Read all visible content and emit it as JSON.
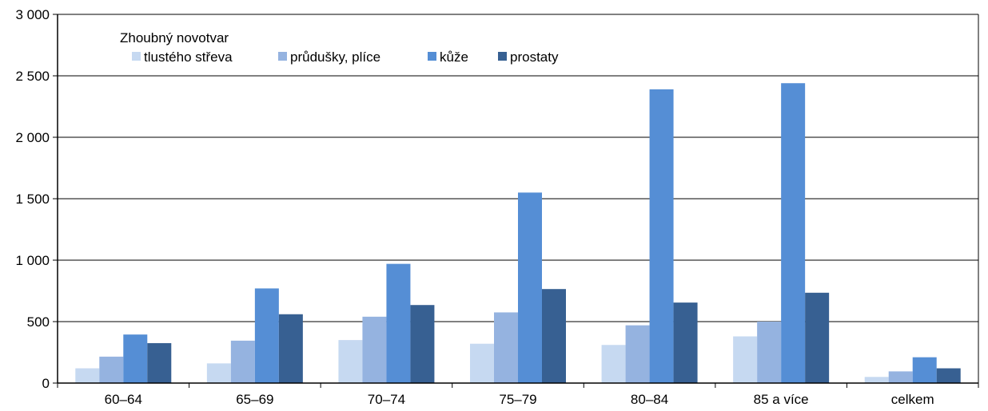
{
  "chart_data": {
    "type": "bar",
    "legend_title": "Zhoubný novotvar",
    "legend_position": "top-left",
    "grid": true,
    "ylim": [
      0,
      3000
    ],
    "yticks": [
      0,
      500,
      1000,
      1500,
      2000,
      2500,
      3000
    ],
    "ytick_labels": [
      "0",
      "500",
      "1 000",
      "1 500",
      "2 000",
      "2 500",
      "3 000"
    ],
    "categories": [
      "60–64",
      "65–69",
      "70–74",
      "75–79",
      "80–84",
      "85 a více",
      "celkem"
    ],
    "series": [
      {
        "name": "tlustého střeva",
        "color": "#c6d9f1",
        "values": [
          120,
          160,
          350,
          320,
          310,
          380,
          50
        ]
      },
      {
        "name": "průdušky, plíce",
        "color": "#95b3e0",
        "values": [
          215,
          345,
          540,
          575,
          470,
          500,
          95
        ]
      },
      {
        "name": "kůže",
        "color": "#558ed5",
        "values": [
          395,
          770,
          970,
          1550,
          2390,
          2440,
          210
        ]
      },
      {
        "name": "prostaty",
        "color": "#376092",
        "values": [
          325,
          560,
          635,
          765,
          655,
          735,
          120
        ]
      }
    ]
  }
}
